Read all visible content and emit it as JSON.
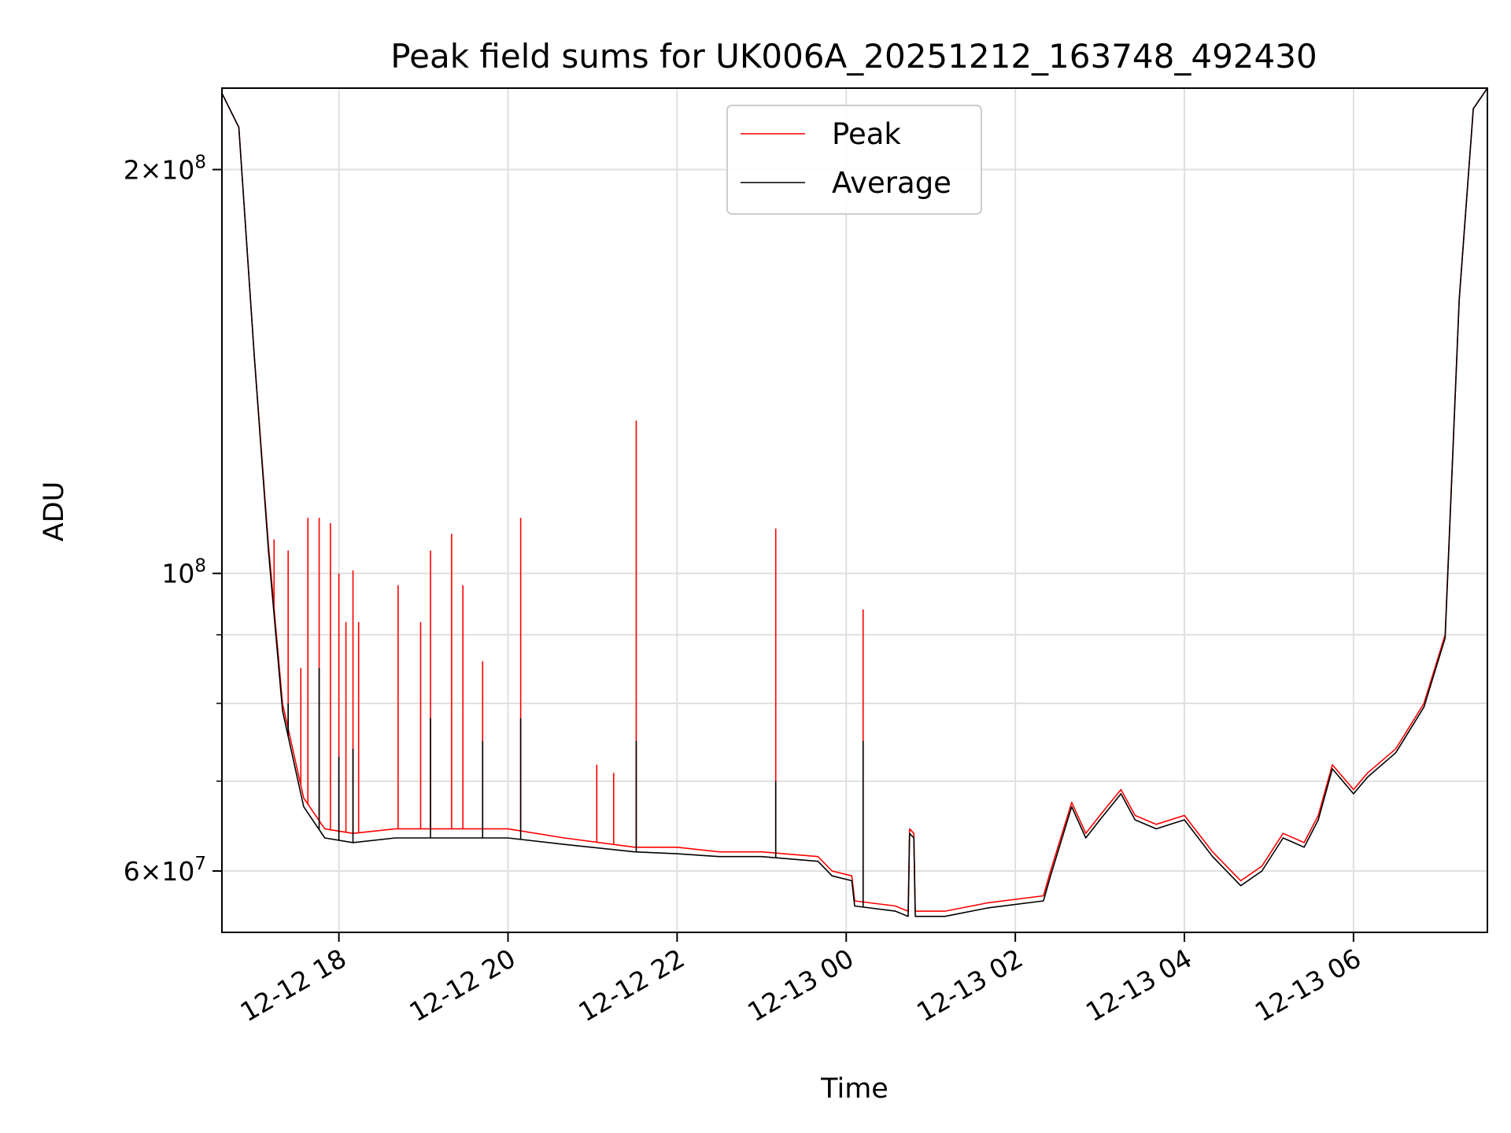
{
  "chart_data": {
    "type": "line",
    "title": "Peak field sums for UK006A_20251212_163748_492430",
    "xlabel": "Time",
    "ylabel": "ADU",
    "xlim": [
      "2025-12-12 16:37",
      "2025-12-13 07:35"
    ],
    "ylim": [
      54000000,
      230000000
    ],
    "yscale": "log",
    "grid": true,
    "legend_position": "top-center",
    "x_ticks": [
      {
        "value": "2025-12-12 18:00",
        "label": "12-12 18"
      },
      {
        "value": "2025-12-12 20:00",
        "label": "12-12 20"
      },
      {
        "value": "2025-12-12 22:00",
        "label": "12-12 22"
      },
      {
        "value": "2025-12-13 00:00",
        "label": "12-13 00"
      },
      {
        "value": "2025-12-13 02:00",
        "label": "12-13 02"
      },
      {
        "value": "2025-12-13 04:00",
        "label": "12-13 04"
      },
      {
        "value": "2025-12-13 06:00",
        "label": "12-13 06"
      }
    ],
    "y_ticks": [
      {
        "value": 60000000,
        "base": "6×10",
        "exp": "7"
      },
      {
        "value": 100000000,
        "base": "10",
        "exp": "8"
      },
      {
        "value": 200000000,
        "base": "2×10",
        "exp": "8"
      }
    ],
    "y_minor_ticks": [
      70000000,
      80000000,
      90000000
    ],
    "series": [
      {
        "name": "Peak",
        "color": "#ff0000",
        "points": [
          [
            "2025-12-12 16:37",
            228000000
          ],
          [
            "2025-12-12 16:49",
            215000000
          ],
          [
            "2025-12-12 17:00",
            145000000
          ],
          [
            "2025-12-12 17:10",
            105000000
          ],
          [
            "2025-12-12 17:20",
            80000000
          ],
          [
            "2025-12-12 17:35",
            68000000
          ],
          [
            "2025-12-12 17:50",
            64500000
          ],
          [
            "2025-12-12 18:10",
            64000000
          ],
          [
            "2025-12-12 18:40",
            64500000
          ],
          [
            "2025-12-12 19:20",
            64500000
          ],
          [
            "2025-12-12 20:00",
            64500000
          ],
          [
            "2025-12-12 20:40",
            63500000
          ],
          [
            "2025-12-12 21:30",
            62500000
          ],
          [
            "2025-12-12 22:00",
            62500000
          ],
          [
            "2025-12-12 22:30",
            62000000
          ],
          [
            "2025-12-12 23:00",
            62000000
          ],
          [
            "2025-12-12 23:40",
            61500000
          ],
          [
            "2025-12-12 23:50",
            60000000
          ],
          [
            "2025-12-13 00:04",
            59500000
          ],
          [
            "2025-12-13 00:06",
            57000000
          ],
          [
            "2025-12-13 00:35",
            56500000
          ],
          [
            "2025-12-13 00:44",
            56000000
          ],
          [
            "2025-12-13 00:45",
            64500000
          ],
          [
            "2025-12-13 00:48",
            64000000
          ],
          [
            "2025-12-13 00:49",
            56000000
          ],
          [
            "2025-12-13 01:10",
            56000000
          ],
          [
            "2025-12-13 01:40",
            56800000
          ],
          [
            "2025-12-13 02:20",
            57500000
          ],
          [
            "2025-12-13 02:25",
            60000000
          ],
          [
            "2025-12-13 02:40",
            67500000
          ],
          [
            "2025-12-13 02:50",
            64000000
          ],
          [
            "2025-12-13 03:00",
            66000000
          ],
          [
            "2025-12-13 03:15",
            69000000
          ],
          [
            "2025-12-13 03:25",
            66000000
          ],
          [
            "2025-12-13 03:40",
            65000000
          ],
          [
            "2025-12-13 04:00",
            66000000
          ],
          [
            "2025-12-13 04:20",
            62000000
          ],
          [
            "2025-12-13 04:40",
            59000000
          ],
          [
            "2025-12-13 04:55",
            60500000
          ],
          [
            "2025-12-13 05:10",
            64000000
          ],
          [
            "2025-12-13 05:25",
            63000000
          ],
          [
            "2025-12-13 05:35",
            66000000
          ],
          [
            "2025-12-13 05:45",
            72000000
          ],
          [
            "2025-12-13 06:00",
            69000000
          ],
          [
            "2025-12-13 06:10",
            71000000
          ],
          [
            "2025-12-13 06:30",
            74000000
          ],
          [
            "2025-12-13 06:50",
            80000000
          ],
          [
            "2025-12-13 07:05",
            90000000
          ],
          [
            "2025-12-13 07:15",
            160000000
          ],
          [
            "2025-12-13 07:25",
            222000000
          ],
          [
            "2025-12-13 07:35",
            230000000
          ]
        ],
        "spikes": [
          [
            "2025-12-12 17:14",
            106000000
          ],
          [
            "2025-12-12 17:24",
            104000000
          ],
          [
            "2025-12-12 17:33",
            85000000
          ],
          [
            "2025-12-12 17:38",
            110000000
          ],
          [
            "2025-12-12 17:46",
            110000000
          ],
          [
            "2025-12-12 17:54",
            109000000
          ],
          [
            "2025-12-12 18:00",
            100000000
          ],
          [
            "2025-12-12 18:05",
            92000000
          ],
          [
            "2025-12-12 18:10",
            100500000
          ],
          [
            "2025-12-12 18:14",
            92000000
          ],
          [
            "2025-12-12 18:42",
            98000000
          ],
          [
            "2025-12-12 18:58",
            92000000
          ],
          [
            "2025-12-12 19:05",
            104000000
          ],
          [
            "2025-12-12 19:20",
            107000000
          ],
          [
            "2025-12-12 19:28",
            98000000
          ],
          [
            "2025-12-12 19:42",
            86000000
          ],
          [
            "2025-12-12 20:09",
            110000000
          ],
          [
            "2025-12-12 21:03",
            72000000
          ],
          [
            "2025-12-12 21:15",
            71000000
          ],
          [
            "2025-12-12 21:31",
            130000000
          ],
          [
            "2025-12-12 23:10",
            108000000
          ],
          [
            "2025-12-13 00:12",
            94000000
          ],
          [
            "2025-12-13 00:45",
            64500000
          ]
        ]
      },
      {
        "name": "Average",
        "color": "#000000",
        "points": [
          [
            "2025-12-12 16:37",
            228000000
          ],
          [
            "2025-12-12 16:49",
            215000000
          ],
          [
            "2025-12-12 17:00",
            145000000
          ],
          [
            "2025-12-12 17:10",
            104000000
          ],
          [
            "2025-12-12 17:20",
            79000000
          ],
          [
            "2025-12-12 17:35",
            67000000
          ],
          [
            "2025-12-12 17:50",
            63500000
          ],
          [
            "2025-12-12 18:10",
            63000000
          ],
          [
            "2025-12-12 18:40",
            63500000
          ],
          [
            "2025-12-12 19:20",
            63500000
          ],
          [
            "2025-12-12 20:00",
            63500000
          ],
          [
            "2025-12-12 20:40",
            62800000
          ],
          [
            "2025-12-12 21:30",
            62000000
          ],
          [
            "2025-12-12 22:00",
            61800000
          ],
          [
            "2025-12-12 22:30",
            61500000
          ],
          [
            "2025-12-12 23:00",
            61500000
          ],
          [
            "2025-12-12 23:40",
            61000000
          ],
          [
            "2025-12-12 23:50",
            59500000
          ],
          [
            "2025-12-13 00:04",
            59000000
          ],
          [
            "2025-12-13 00:06",
            56500000
          ],
          [
            "2025-12-13 00:35",
            56000000
          ],
          [
            "2025-12-13 00:44",
            55500000
          ],
          [
            "2025-12-13 00:45",
            64000000
          ],
          [
            "2025-12-13 00:48",
            63500000
          ],
          [
            "2025-12-13 00:49",
            55500000
          ],
          [
            "2025-12-13 01:10",
            55500000
          ],
          [
            "2025-12-13 01:40",
            56300000
          ],
          [
            "2025-12-13 02:20",
            57000000
          ],
          [
            "2025-12-13 02:25",
            59500000
          ],
          [
            "2025-12-13 02:40",
            67000000
          ],
          [
            "2025-12-13 02:50",
            63500000
          ],
          [
            "2025-12-13 03:00",
            65500000
          ],
          [
            "2025-12-13 03:15",
            68500000
          ],
          [
            "2025-12-13 03:25",
            65500000
          ],
          [
            "2025-12-13 03:40",
            64500000
          ],
          [
            "2025-12-13 04:00",
            65500000
          ],
          [
            "2025-12-13 04:20",
            61500000
          ],
          [
            "2025-12-13 04:40",
            58500000
          ],
          [
            "2025-12-13 04:55",
            60000000
          ],
          [
            "2025-12-13 05:10",
            63500000
          ],
          [
            "2025-12-13 05:25",
            62500000
          ],
          [
            "2025-12-13 05:35",
            65500000
          ],
          [
            "2025-12-13 05:45",
            71500000
          ],
          [
            "2025-12-13 06:00",
            68500000
          ],
          [
            "2025-12-13 06:10",
            70500000
          ],
          [
            "2025-12-13 06:30",
            73500000
          ],
          [
            "2025-12-13 06:50",
            79500000
          ],
          [
            "2025-12-13 07:05",
            89500000
          ],
          [
            "2025-12-13 07:15",
            160000000
          ],
          [
            "2025-12-13 07:25",
            222000000
          ],
          [
            "2025-12-13 07:35",
            230000000
          ]
        ],
        "spikes": [
          [
            "2025-12-12 17:24",
            80000000
          ],
          [
            "2025-12-12 17:46",
            85000000
          ],
          [
            "2025-12-12 18:00",
            73000000
          ],
          [
            "2025-12-12 18:10",
            74000000
          ],
          [
            "2025-12-12 19:05",
            78000000
          ],
          [
            "2025-12-12 19:42",
            75000000
          ],
          [
            "2025-12-12 20:09",
            78000000
          ],
          [
            "2025-12-12 21:31",
            75000000
          ],
          [
            "2025-12-12 23:10",
            70000000
          ],
          [
            "2025-12-13 00:12",
            75000000
          ]
        ]
      }
    ]
  }
}
